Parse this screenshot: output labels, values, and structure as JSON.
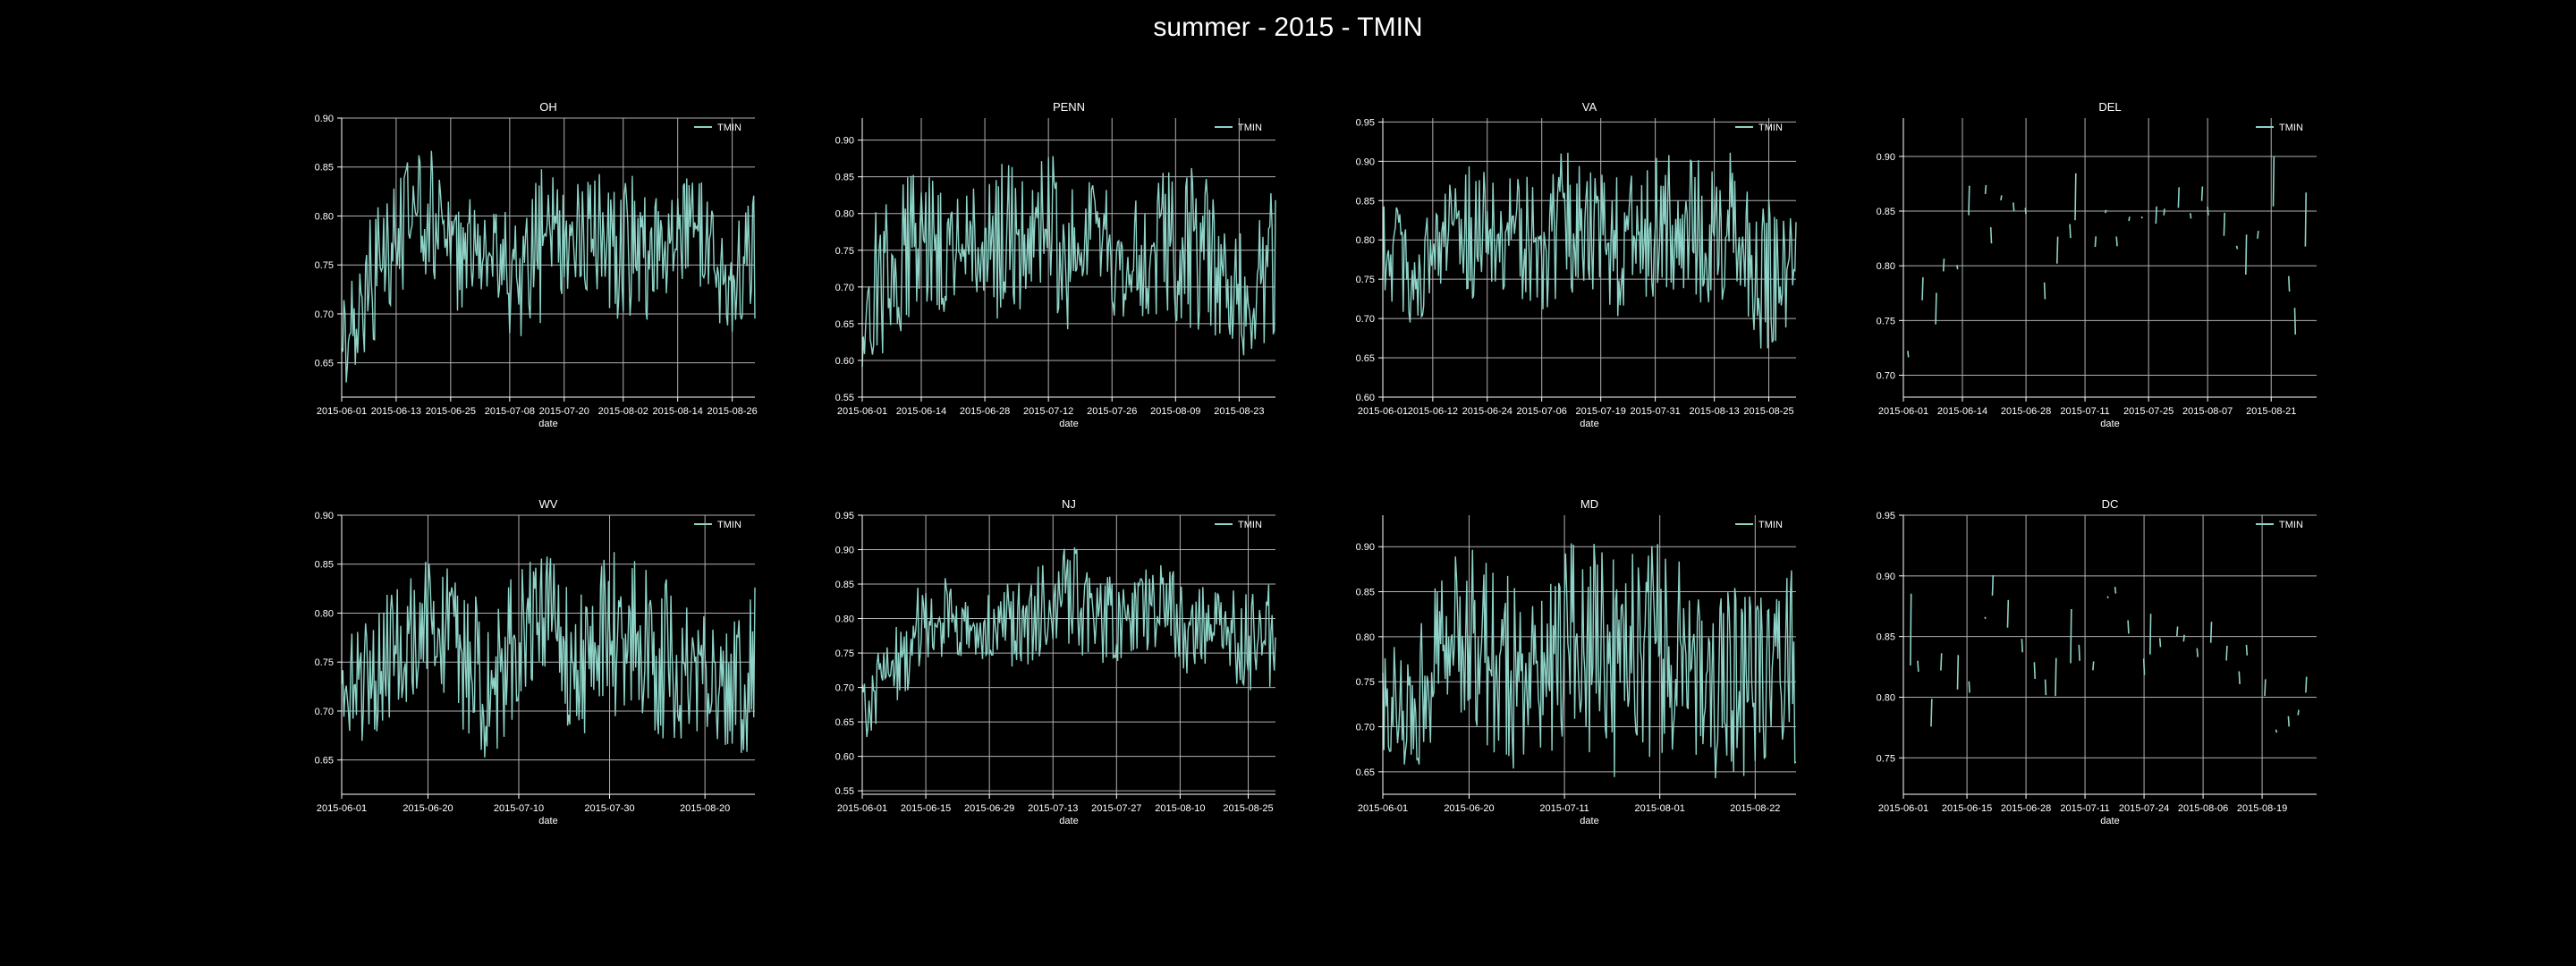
{
  "title": "summer - 2015 - TMIN",
  "colors": {
    "background": "#000000",
    "foreground": "#ffffff",
    "grid": "#b0b0b0",
    "series": "#8dd3c7"
  },
  "chart_data": [
    {
      "type": "line",
      "title": "OH",
      "xlabel": "date",
      "ylabel": "",
      "legend": "upper right",
      "grid": true,
      "x_range": [
        "2015-06-01",
        "2015-08-31"
      ],
      "ylim": [
        0.615,
        0.9
      ],
      "x_ticks": [
        "2015-06-01",
        "2015-06-13",
        "2015-06-25",
        "2015-07-08",
        "2015-07-20",
        "2015-08-02",
        "2015-08-14",
        "2015-08-26"
      ],
      "y_ticks": [
        0.65,
        0.7,
        0.75,
        0.8,
        0.85,
        0.9
      ],
      "series": [
        {
          "name": "TMIN",
          "style": "dense",
          "band_lower": [
            0.62,
            0.66,
            0.72,
            0.74,
            0.7,
            0.72,
            0.66,
            0.7,
            0.72,
            0.7,
            0.66,
            0.72,
            0.72,
            0.68,
            0.67
          ],
          "band_upper": [
            0.72,
            0.8,
            0.86,
            0.87,
            0.84,
            0.8,
            0.82,
            0.86,
            0.84,
            0.85,
            0.84,
            0.82,
            0.85,
            0.78,
            0.84
          ]
        }
      ]
    },
    {
      "type": "line",
      "title": "PENN",
      "xlabel": "date",
      "ylabel": "",
      "legend": "upper right",
      "grid": true,
      "x_range": [
        "2015-06-01",
        "2015-08-31"
      ],
      "ylim": [
        0.55,
        0.93
      ],
      "x_ticks": [
        "2015-06-01",
        "2015-06-14",
        "2015-06-28",
        "2015-07-12",
        "2015-07-26",
        "2015-08-09",
        "2015-08-23"
      ],
      "y_ticks": [
        0.55,
        0.6,
        0.65,
        0.7,
        0.75,
        0.8,
        0.85,
        0.9
      ],
      "series": [
        {
          "name": "TMIN",
          "style": "dense",
          "band_lower": [
            0.58,
            0.62,
            0.68,
            0.66,
            0.68,
            0.64,
            0.7,
            0.64,
            0.68,
            0.64,
            0.66,
            0.64,
            0.62,
            0.6,
            0.62
          ],
          "band_upper": [
            0.78,
            0.84,
            0.86,
            0.82,
            0.84,
            0.88,
            0.9,
            0.86,
            0.84,
            0.82,
            0.86,
            0.88,
            0.84,
            0.78,
            0.84
          ]
        }
      ]
    },
    {
      "type": "line",
      "title": "VA",
      "xlabel": "date",
      "ylabel": "",
      "legend": "upper right",
      "grid": true,
      "x_range": [
        "2015-06-01",
        "2015-08-31"
      ],
      "ylim": [
        0.6,
        0.955
      ],
      "x_ticks": [
        "2015-06-01",
        "2015-06-12",
        "2015-06-24",
        "2015-07-06",
        "2015-07-19",
        "2015-07-31",
        "2015-08-13",
        "2015-08-25"
      ],
      "y_ticks": [
        0.6,
        0.65,
        0.7,
        0.75,
        0.8,
        0.85,
        0.9,
        0.95
      ],
      "series": [
        {
          "name": "TMIN",
          "style": "dense",
          "band_lower": [
            0.72,
            0.68,
            0.74,
            0.72,
            0.74,
            0.68,
            0.72,
            0.74,
            0.7,
            0.72,
            0.74,
            0.7,
            0.72,
            0.64,
            0.7
          ],
          "band_upper": [
            0.86,
            0.82,
            0.88,
            0.9,
            0.88,
            0.9,
            0.92,
            0.9,
            0.88,
            0.9,
            0.92,
            0.9,
            0.92,
            0.86,
            0.86
          ]
        }
      ]
    },
    {
      "type": "line",
      "title": "DEL",
      "xlabel": "date",
      "ylabel": "",
      "legend": "upper right",
      "grid": true,
      "x_range": [
        "2015-06-01",
        "2015-08-31"
      ],
      "ylim": [
        0.68,
        0.935
      ],
      "x_ticks": [
        "2015-06-01",
        "2015-06-14",
        "2015-06-28",
        "2015-07-11",
        "2015-07-25",
        "2015-08-07",
        "2015-08-21"
      ],
      "y_ticks": [
        0.7,
        0.75,
        0.8,
        0.85,
        0.9
      ],
      "series": [
        {
          "name": "TMIN",
          "style": "sparse",
          "band_lower": [
            0.7,
            0.72,
            0.78,
            0.8,
            0.82,
            0.76,
            0.8,
            0.82,
            0.84,
            0.82,
            0.84,
            0.8,
            0.78,
            0.76,
            0.74
          ],
          "band_upper": [
            0.72,
            0.8,
            0.86,
            0.87,
            0.86,
            0.84,
            0.87,
            0.87,
            0.88,
            0.86,
            0.87,
            0.86,
            0.84,
            0.87,
            0.8
          ]
        }
      ]
    },
    {
      "type": "line",
      "title": "WV",
      "xlabel": "date",
      "ylabel": "",
      "legend": "upper right",
      "grid": true,
      "x_range": [
        "2015-06-01",
        "2015-08-31"
      ],
      "ylim": [
        0.615,
        0.9
      ],
      "x_ticks": [
        "2015-06-01",
        "2015-06-20",
        "2015-07-10",
        "2015-07-30",
        "2015-08-20"
      ],
      "y_ticks": [
        0.65,
        0.7,
        0.75,
        0.8,
        0.85,
        0.9
      ],
      "series": [
        {
          "name": "TMIN",
          "style": "dense",
          "band_lower": [
            0.68,
            0.66,
            0.7,
            0.74,
            0.68,
            0.64,
            0.7,
            0.72,
            0.66,
            0.68,
            0.7,
            0.66,
            0.68,
            0.64,
            0.64
          ],
          "band_upper": [
            0.78,
            0.8,
            0.84,
            0.86,
            0.84,
            0.8,
            0.86,
            0.86,
            0.84,
            0.88,
            0.86,
            0.84,
            0.82,
            0.78,
            0.84
          ]
        }
      ]
    },
    {
      "type": "line",
      "title": "NJ",
      "xlabel": "date",
      "ylabel": "",
      "legend": "upper right",
      "grid": true,
      "x_range": [
        "2015-06-01",
        "2015-08-31"
      ],
      "ylim": [
        0.545,
        0.95
      ],
      "x_ticks": [
        "2015-06-01",
        "2015-06-15",
        "2015-06-29",
        "2015-07-13",
        "2015-07-27",
        "2015-08-10",
        "2015-08-25"
      ],
      "y_ticks": [
        0.55,
        0.6,
        0.65,
        0.7,
        0.75,
        0.8,
        0.85,
        0.9,
        0.95
      ],
      "series": [
        {
          "name": "TMIN",
          "style": "dense",
          "band_lower": [
            0.6,
            0.66,
            0.72,
            0.74,
            0.74,
            0.72,
            0.74,
            0.76,
            0.72,
            0.74,
            0.76,
            0.72,
            0.74,
            0.68,
            0.7
          ],
          "band_upper": [
            0.72,
            0.78,
            0.86,
            0.86,
            0.84,
            0.86,
            0.88,
            0.92,
            0.88,
            0.86,
            0.88,
            0.86,
            0.88,
            0.84,
            0.86
          ]
        }
      ]
    },
    {
      "type": "line",
      "title": "MD",
      "xlabel": "date",
      "ylabel": "",
      "legend": "upper right",
      "grid": true,
      "x_range": [
        "2015-06-01",
        "2015-08-31"
      ],
      "ylim": [
        0.625,
        0.935
      ],
      "x_ticks": [
        "2015-06-01",
        "2015-06-20",
        "2015-07-11",
        "2015-08-01",
        "2015-08-22"
      ],
      "y_ticks": [
        0.65,
        0.7,
        0.75,
        0.8,
        0.85,
        0.9
      ],
      "series": [
        {
          "name": "TMIN",
          "style": "dense",
          "band_lower": [
            0.66,
            0.64,
            0.7,
            0.7,
            0.66,
            0.64,
            0.68,
            0.66,
            0.64,
            0.66,
            0.66,
            0.64,
            0.64,
            0.64,
            0.66
          ],
          "band_upper": [
            0.8,
            0.8,
            0.88,
            0.9,
            0.88,
            0.86,
            0.9,
            0.92,
            0.88,
            0.92,
            0.9,
            0.86,
            0.88,
            0.84,
            0.88
          ]
        }
      ]
    },
    {
      "type": "line",
      "title": "DC",
      "xlabel": "date",
      "ylabel": "",
      "legend": "upper right",
      "grid": true,
      "x_range": [
        "2015-06-01",
        "2015-08-31"
      ],
      "ylim": [
        0.72,
        0.95
      ],
      "x_ticks": [
        "2015-06-01",
        "2015-06-15",
        "2015-06-28",
        "2015-07-11",
        "2015-07-24",
        "2015-08-06",
        "2015-08-19"
      ],
      "y_ticks": [
        0.75,
        0.8,
        0.85,
        0.9,
        0.95
      ],
      "series": [
        {
          "name": "TMIN",
          "style": "sparse",
          "band_lower": [
            0.73,
            0.76,
            0.8,
            0.82,
            0.8,
            0.79,
            0.8,
            0.82,
            0.8,
            0.82,
            0.82,
            0.8,
            0.78,
            0.76,
            0.78
          ],
          "band_upper": [
            0.86,
            0.81,
            0.88,
            0.9,
            0.86,
            0.85,
            0.88,
            0.92,
            0.88,
            0.86,
            0.86,
            0.85,
            0.84,
            0.82,
            0.83
          ]
        }
      ]
    }
  ]
}
